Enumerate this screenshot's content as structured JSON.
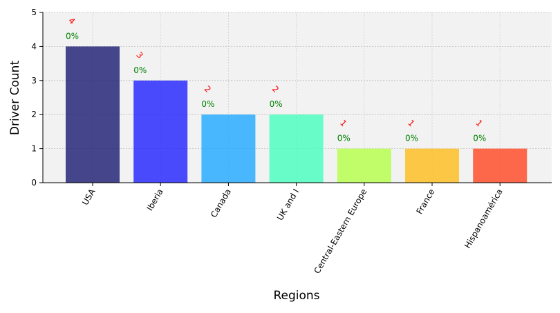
{
  "chart_data": {
    "type": "bar",
    "xlabel": "Regions",
    "ylabel": "Driver Count",
    "categories": [
      "USA",
      "Iberia",
      "Canada",
      "UK and I",
      "Central-Eastern Europe",
      "France",
      "Hispanoamérica"
    ],
    "values": [
      4,
      3,
      2,
      2,
      1,
      1,
      1
    ],
    "value_labels": [
      "4",
      "3",
      "2",
      "2",
      "1",
      "1",
      "1"
    ],
    "percent_labels": [
      "0%",
      "0%",
      "0%",
      "0%",
      "0%",
      "0%",
      "0%"
    ],
    "colors": [
      "#191970",
      "#1f1fff",
      "#1ea7ff",
      "#45ffbd",
      "#b4ff45",
      "#ffbb1a",
      "#ff4520"
    ],
    "ylim": [
      0,
      5
    ],
    "yticks": [
      "0",
      "1",
      "2",
      "3",
      "4",
      "5"
    ],
    "grid": true,
    "background": "#f2f2f2",
    "value_label_color": "#ff0000",
    "percent_label_color": "#008000"
  }
}
